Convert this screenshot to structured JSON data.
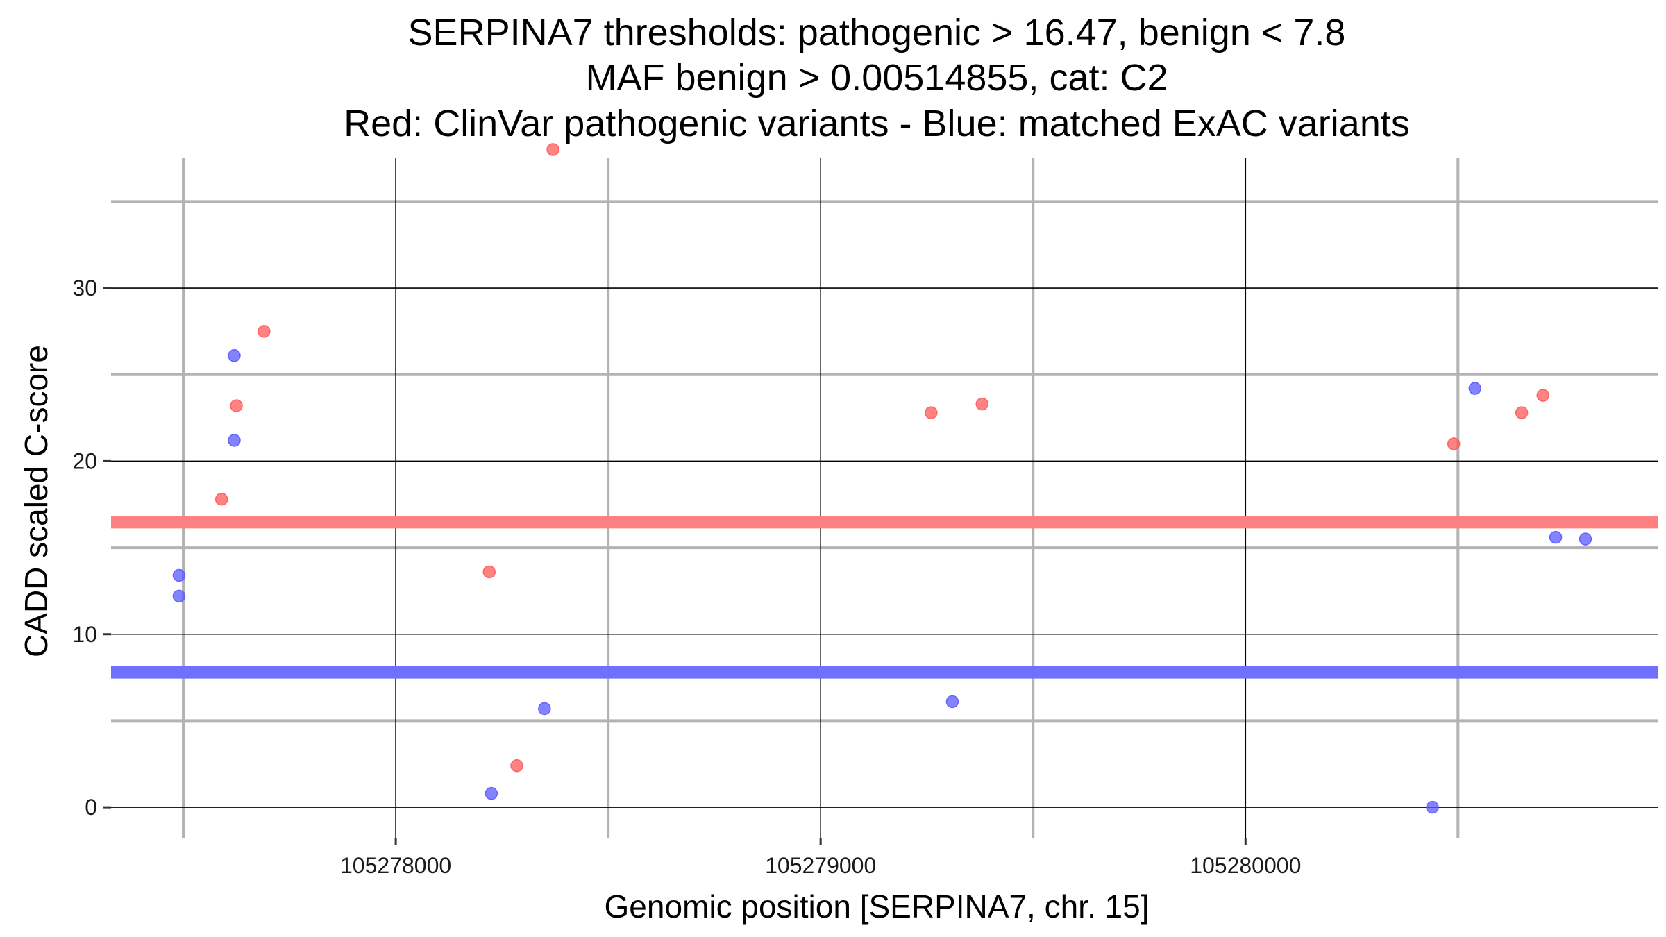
{
  "chart_data": {
    "type": "scatter",
    "title": [
      "SERPINA7 thresholds: pathogenic > 16.47, benign < 7.8",
      "MAF benign > 0.00514855, cat: C2",
      "Red: ClinVar pathogenic variants - Blue: matched ExAC variants"
    ],
    "xlabel": "Genomic position [SERPINA7, chr. 15]",
    "ylabel": "CADD scaled C-score",
    "xlim": [
      105277330,
      105280970
    ],
    "ylim": [
      -1.8,
      37.5
    ],
    "x_ticks": [
      105278000,
      105279000,
      105280000
    ],
    "x_tick_labels": [
      "105278000",
      "105279000",
      "105280000"
    ],
    "y_ticks": [
      0,
      10,
      20,
      30
    ],
    "y_tick_labels": [
      "0",
      "10",
      "20",
      "30"
    ],
    "x_minor": [
      105277500,
      105278500,
      105279500,
      105280500
    ],
    "y_minor": [
      5,
      15,
      25,
      35
    ],
    "colors": {
      "pathogenic": "#ff5a5a",
      "benign": "#5a5aff",
      "pathogenic_line": "#ff8080",
      "benign_line": "#7070ff"
    },
    "thresholds": [
      {
        "name": "pathogenic",
        "value": 16.47
      },
      {
        "name": "benign",
        "value": 7.8
      }
    ],
    "series": [
      {
        "name": "ClinVar pathogenic",
        "points": [
          {
            "x": 105277590,
            "y": 17.8
          },
          {
            "x": 105277625,
            "y": 23.2
          },
          {
            "x": 105277690,
            "y": 27.5
          },
          {
            "x": 105278220,
            "y": 13.6
          },
          {
            "x": 105278285,
            "y": 2.4
          },
          {
            "x": 105278370,
            "y": 38.0
          },
          {
            "x": 105279260,
            "y": 22.8
          },
          {
            "x": 105279380,
            "y": 23.3
          },
          {
            "x": 105280490,
            "y": 21.0
          },
          {
            "x": 105280650,
            "y": 22.8
          },
          {
            "x": 105280700,
            "y": 23.8
          }
        ]
      },
      {
        "name": "matched ExAC",
        "points": [
          {
            "x": 105277490,
            "y": 13.4
          },
          {
            "x": 105277490,
            "y": 12.2
          },
          {
            "x": 105277620,
            "y": 26.1
          },
          {
            "x": 105277620,
            "y": 21.2
          },
          {
            "x": 105278225,
            "y": 0.8
          },
          {
            "x": 105278350,
            "y": 5.7
          },
          {
            "x": 105279310,
            "y": 6.1
          },
          {
            "x": 105280440,
            "y": 0.0
          },
          {
            "x": 105280540,
            "y": 24.2
          },
          {
            "x": 105280730,
            "y": 15.6
          },
          {
            "x": 105280800,
            "y": 15.5
          }
        ]
      }
    ]
  }
}
